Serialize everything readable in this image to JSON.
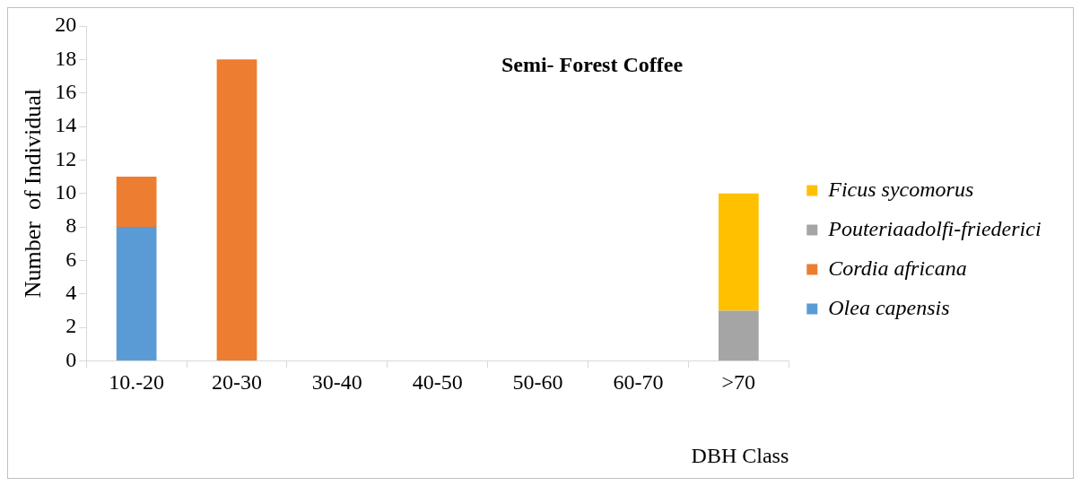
{
  "chart_data": {
    "type": "bar",
    "title": "Semi- Forest Coffee",
    "xlabel": "DBH Class",
    "ylabel": "Number  of Individual",
    "categories": [
      "10.-20",
      "20-30",
      "30-40",
      "40-50",
      "50-60",
      "60-70",
      ">70"
    ],
    "stacked": true,
    "ylim": [
      0,
      20
    ],
    "yticks": [
      0,
      2,
      4,
      6,
      8,
      10,
      12,
      14,
      16,
      18,
      20
    ],
    "grid": false,
    "legend": "right",
    "series": [
      {
        "name": "Olea capensis",
        "color": "#5b9bd5",
        "values": [
          8,
          null,
          null,
          null,
          null,
          null,
          null
        ]
      },
      {
        "name": "Cordia africana",
        "color": "#ed7d31",
        "values": [
          3,
          18,
          null,
          null,
          null,
          null,
          null
        ]
      },
      {
        "name": "Pouteriaadolfi-friederici",
        "color": "#a5a5a5",
        "values": [
          null,
          null,
          null,
          null,
          null,
          null,
          3
        ]
      },
      {
        "name": "Ficus sycomorus",
        "color": "#ffc000",
        "values": [
          null,
          null,
          null,
          null,
          null,
          null,
          7
        ]
      }
    ]
  }
}
